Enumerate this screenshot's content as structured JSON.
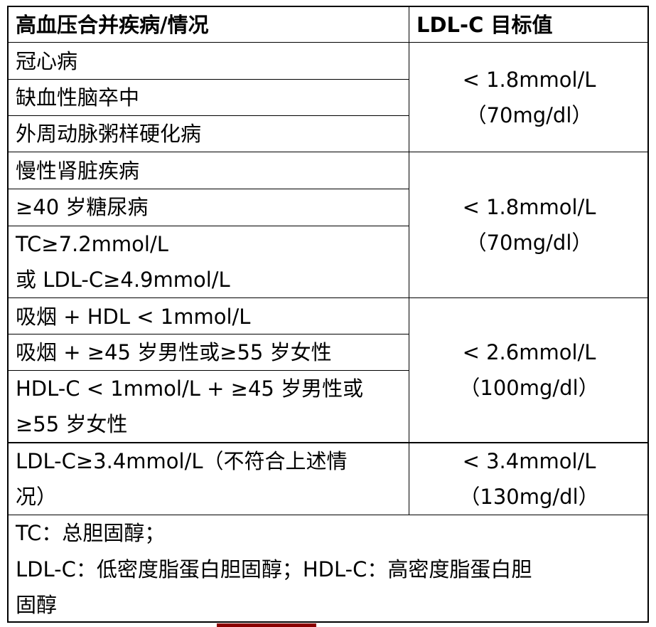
{
  "table": {
    "headers": [
      "高血压合并疾病/情况",
      "LDL-C 目标值"
    ],
    "groups": [
      {
        "conditions": [
          "冠心病",
          "缺血性脑卒中",
          "外周动脉粥样硬化病"
        ],
        "target": [
          "< 1.8mmol/L",
          "（70mg/dl）"
        ]
      },
      {
        "conditions": [
          "慢性肾脏疾病",
          "≥40 岁糖尿病",
          "TC≥7.2mmol/L",
          "或 LDL-C≥4.9mmol/L"
        ],
        "target": [
          "< 1.8mmol/L",
          "（70mg/dl）"
        ]
      },
      {
        "conditions": [
          "吸烟 + HDL < 1mmol/L",
          "吸烟 + ≥45 岁男性或≥55 岁女性",
          "HDL-C < 1mmol/L + ≥45 岁男性或",
          "≥55 岁女性"
        ],
        "target": [
          "< 2.6mmol/L",
          "（100mg/dl）"
        ]
      },
      {
        "conditions": [
          "LDL-C≥3.4mmol/L（不符合上述情",
          "况）"
        ],
        "target": [
          "< 3.4mmol/L",
          "（130mg/dl）"
        ]
      }
    ],
    "footnote": [
      "TC：总胆固醇；",
      "LDL-C：低密度脂蛋白胆固醇；HDL-C：高密度脂蛋白胆",
      "固醇"
    ]
  },
  "colors": {
    "accent_bar": "#8b0000"
  }
}
